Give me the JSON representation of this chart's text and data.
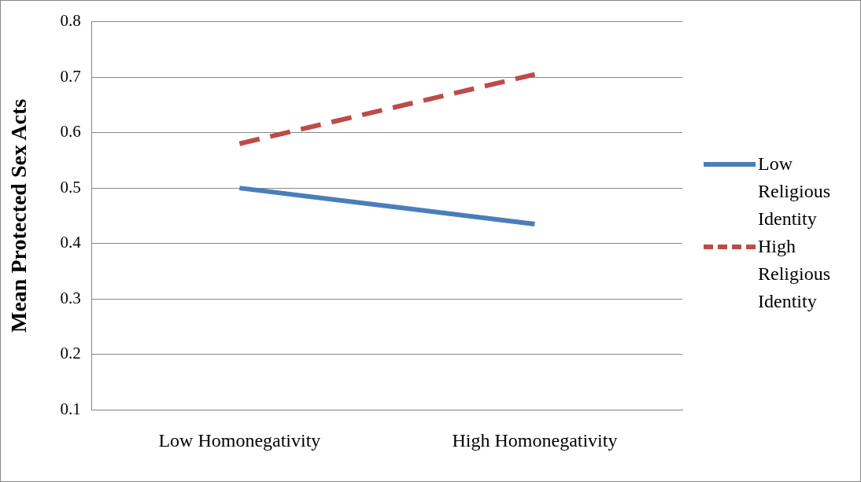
{
  "chart_data": {
    "type": "line",
    "ylabel": "Mean Protected Sex Acts",
    "categories": [
      "Low Homonegativity",
      "High Homonegativity"
    ],
    "series": [
      {
        "name": "Low Religious Identity",
        "color": "#4a7ebb",
        "values": [
          0.5,
          0.435
        ],
        "line_style": "solid"
      },
      {
        "name": "High Religious Identity",
        "color": "#be4b48",
        "values": [
          0.58,
          0.705
        ],
        "line_style": "dashed"
      }
    ],
    "ylim": [
      0.1,
      0.8
    ],
    "yticks": [
      0.1,
      0.2,
      0.3,
      0.4,
      0.5,
      0.6,
      0.7,
      0.8
    ],
    "grid": "y",
    "legend": "right",
    "marker": "none"
  }
}
